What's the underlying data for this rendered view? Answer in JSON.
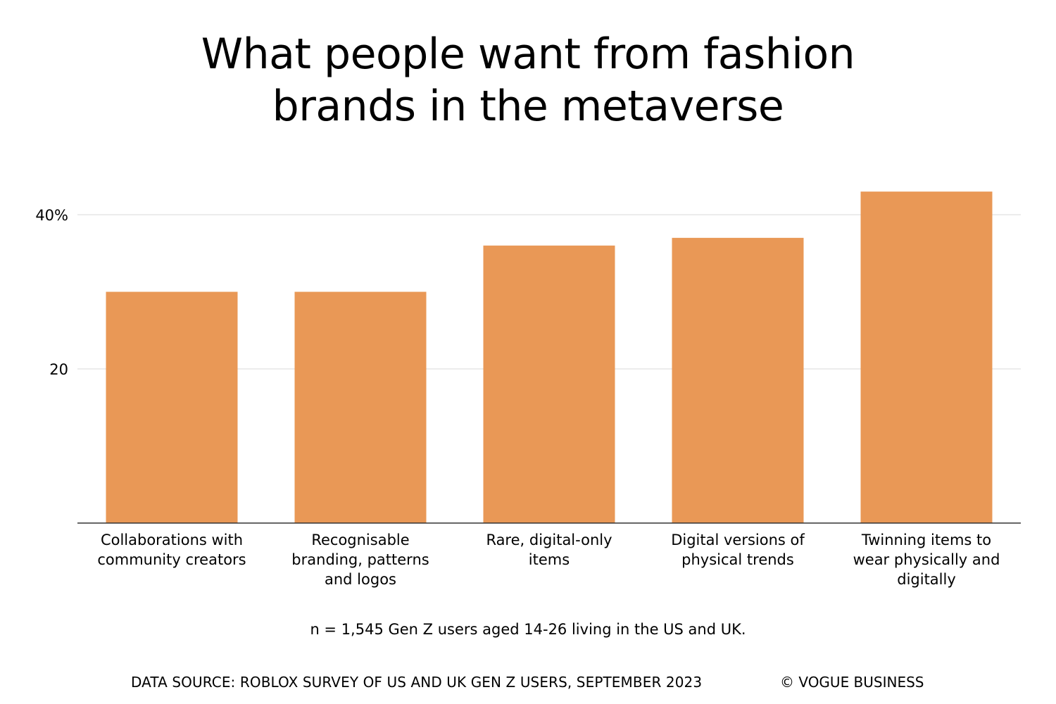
{
  "title_lines": [
    "What people want from fashion",
    "brands in the metaverse"
  ],
  "note": "n = 1,545 Gen Z users aged 14-26 living in the US and UK.",
  "footer": {
    "source": "DATA SOURCE: ROBLOX SURVEY OF US AND UK GEN Z USERS, SEPTEMBER 2023",
    "credit": "© VOGUE BUSINESS"
  },
  "colors": {
    "bar": "#E99856",
    "grid": "#e6e6e6",
    "axis": "#333333",
    "text": "#000000"
  },
  "chart_data": {
    "type": "bar",
    "title": "What people want from fashion brands in the metaverse",
    "categories": [
      [
        "Collaborations with",
        "community creators"
      ],
      [
        "Recognisable",
        "branding, patterns",
        "and logos"
      ],
      [
        "Rare, digital-only",
        "items"
      ],
      [
        "Digital versions of",
        "physical trends"
      ],
      [
        "Twinning items to",
        "wear physically and",
        "digitally"
      ]
    ],
    "values": [
      30,
      30,
      36,
      37,
      43
    ],
    "ylim": [
      0,
      45
    ],
    "yticks": [
      {
        "value": 20,
        "label": "20"
      },
      {
        "value": 40,
        "label": "40%"
      }
    ],
    "grid": true,
    "legend": "none"
  }
}
